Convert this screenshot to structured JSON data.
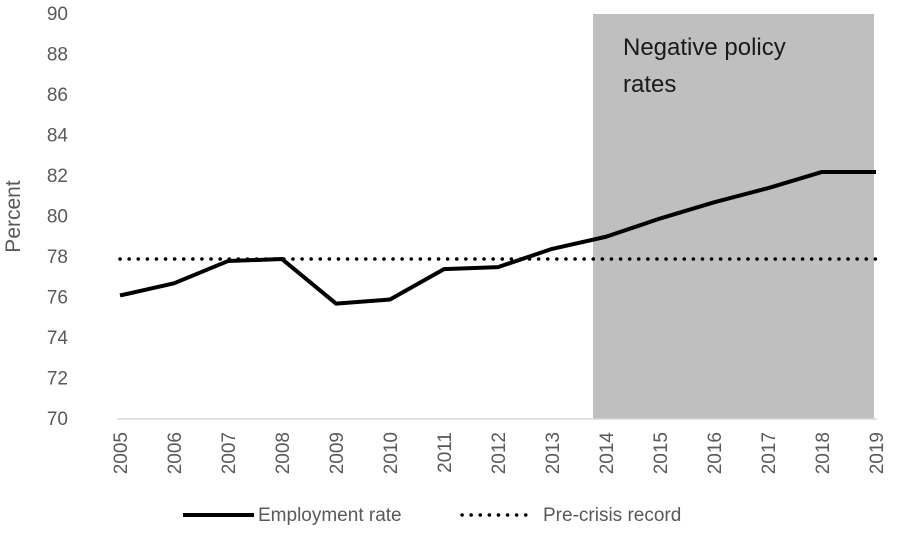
{
  "chart_data": {
    "type": "line",
    "title": "",
    "xlabel": "",
    "ylabel": "Percent",
    "x": [
      "2005",
      "2006",
      "2007",
      "2008",
      "2009",
      "2010",
      "2011",
      "2012",
      "2013",
      "2014",
      "2015",
      "2016",
      "2017",
      "2018",
      "2019"
    ],
    "yticks": [
      "70",
      "72",
      "74",
      "76",
      "78",
      "80",
      "82",
      "84",
      "86",
      "88",
      "90"
    ],
    "ylim": [
      70,
      90
    ],
    "grid": false,
    "legend_position": "bottom",
    "series": [
      {
        "name": "Employment rate",
        "style": "solid",
        "color": "#000000",
        "values": [
          76.1,
          76.7,
          77.8,
          77.9,
          75.7,
          75.9,
          77.4,
          77.5,
          78.4,
          79.0,
          79.9,
          80.7,
          81.4,
          82.2,
          82.2
        ]
      },
      {
        "name": "Pre-crisis record",
        "style": "dotted",
        "color": "#000000",
        "values": [
          77.9,
          77.9,
          77.9,
          77.9,
          77.9,
          77.9,
          77.9,
          77.9,
          77.9,
          77.9,
          77.9,
          77.9,
          77.9,
          77.9,
          77.9
        ]
      }
    ],
    "shaded_region": {
      "label_line1": "Negative policy",
      "label_line2": "rates",
      "x_start": "2014",
      "x_end": "2019",
      "color": "#bfbfbf"
    }
  }
}
